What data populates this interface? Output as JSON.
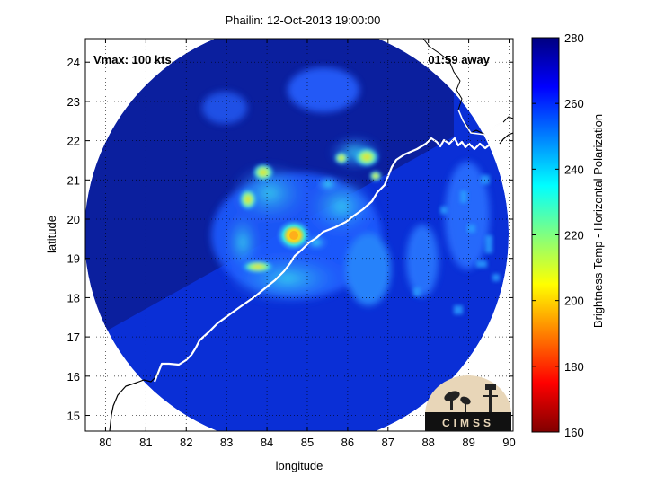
{
  "chart_data": {
    "type": "heatmap",
    "title": "Phailin: 12-Oct-2013 19:00:00",
    "xlabel": "longitude",
    "ylabel": "latitude",
    "xlim": [
      79.5,
      90.1
    ],
    "ylim": [
      14.6,
      24.6
    ],
    "xticks": [
      "80",
      "81",
      "82",
      "83",
      "84",
      "85",
      "86",
      "87",
      "88",
      "89",
      "90"
    ],
    "yticks": [
      "15",
      "16",
      "17",
      "18",
      "19",
      "20",
      "21",
      "22",
      "23",
      "24"
    ],
    "grid": true,
    "annotations": {
      "vmax": "Vmax: 100 kts",
      "away": "01:59 away"
    },
    "colorbar": {
      "label": "Brightness Temp - Horizontal Polarization",
      "ticks": [
        "160",
        "180",
        "200",
        "220",
        "240",
        "260",
        "280"
      ],
      "range": [
        160,
        280
      ],
      "colormap": "jet"
    },
    "storm_center": {
      "lon": 84.7,
      "lat": 19.6
    },
    "swath_center": {
      "lon": 84.9,
      "lat": 19.5
    },
    "logo": "CIMSS"
  },
  "colors": {
    "background_field": "#0a2fd6",
    "west_field": "#0b1f9e",
    "coastline": "#ffffff"
  }
}
